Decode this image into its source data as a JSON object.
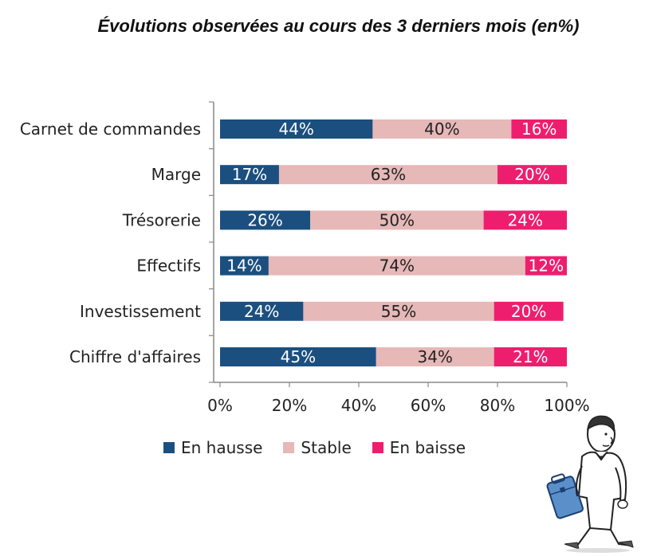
{
  "chart_data": {
    "type": "bar",
    "orientation": "horizontal",
    "stacked": true,
    "title": "Évolutions observées au cours des 3 derniers mois  (en%)",
    "categories": [
      "Carnet de commandes",
      "Marge",
      "Trésorerie",
      "Effectifs",
      "Investissement",
      "Chiffre d'affaires"
    ],
    "series": [
      {
        "name": "En hausse",
        "color": "#1b4f7f",
        "values": [
          44,
          17,
          26,
          14,
          24,
          45
        ],
        "labels": [
          "44%",
          "17%",
          "26%",
          "14%",
          "24%",
          "45%"
        ],
        "label_color": "#ffffff"
      },
      {
        "name": "Stable",
        "color": "#e6b8b8",
        "values": [
          40,
          63,
          50,
          74,
          55,
          34
        ],
        "labels": [
          "40%",
          "63%",
          "50%",
          "74%",
          "55%",
          "34%"
        ],
        "label_color": "#222222"
      },
      {
        "name": "En baisse",
        "color": "#ee1e6e",
        "values": [
          16,
          20,
          24,
          12,
          20,
          21
        ],
        "labels": [
          "16%",
          "20%",
          "24%",
          "12%",
          "20%",
          "21%"
        ],
        "label_color": "#ffffff"
      }
    ],
    "xlim": [
      0,
      100
    ],
    "xticks": [
      "0%",
      "20%",
      "40%",
      "60%",
      "80%",
      "100%"
    ],
    "grid": false,
    "legend_position": "bottom"
  },
  "illustration": {
    "icon": "walking-businessman-icon"
  }
}
